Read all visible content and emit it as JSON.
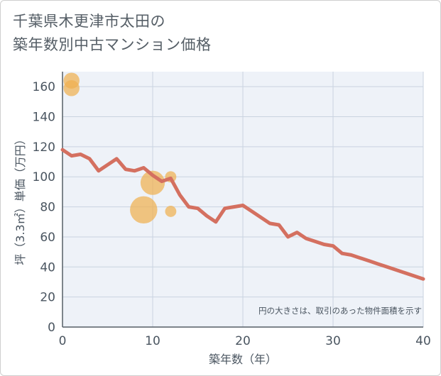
{
  "title": {
    "line1": "千葉県木更津市太田の",
    "line2": "築年数別中古マンション価格"
  },
  "chart_data": {
    "type": "scatter",
    "xlabel": "築年数（年）",
    "ylabel": "坪（3.3㎡）単価（万円）",
    "xlim": [
      0,
      40
    ],
    "ylim": [
      0,
      170
    ],
    "xticks": [
      0,
      10,
      20,
      30,
      40
    ],
    "yticks": [
      0,
      20,
      40,
      60,
      80,
      100,
      120,
      140,
      160
    ],
    "grid": true,
    "note": "円の大きさは、取引のあった物件面積を示す",
    "trend_color": "#d47060",
    "bubble_color": "#f0b050",
    "trend_line": {
      "name": "trend",
      "x": [
        0,
        1,
        2,
        3,
        4,
        5,
        6,
        7,
        8,
        9,
        10,
        11,
        12,
        13,
        14,
        15,
        16,
        17,
        18,
        19,
        20,
        21,
        22,
        23,
        24,
        25,
        26,
        27,
        28,
        29,
        30,
        31,
        32,
        33,
        34,
        35,
        36,
        37,
        38,
        39,
        40
      ],
      "y": [
        118,
        114,
        115,
        112,
        104,
        108,
        112,
        105,
        104,
        106,
        101,
        97,
        99,
        88,
        80,
        79,
        74,
        70,
        79,
        80,
        81,
        77,
        73,
        69,
        68,
        60,
        63,
        59,
        57,
        55,
        54,
        49,
        48,
        46,
        44,
        42,
        40,
        38,
        36,
        34,
        32
      ]
    },
    "bubbles": [
      {
        "x": 1,
        "y": 164,
        "size": 3
      },
      {
        "x": 1,
        "y": 159,
        "size": 3
      },
      {
        "x": 9,
        "y": 78,
        "size": 12
      },
      {
        "x": 10,
        "y": 96,
        "size": 9
      },
      {
        "x": 12,
        "y": 100,
        "size": 1
      },
      {
        "x": 12,
        "y": 77,
        "size": 1
      }
    ]
  }
}
